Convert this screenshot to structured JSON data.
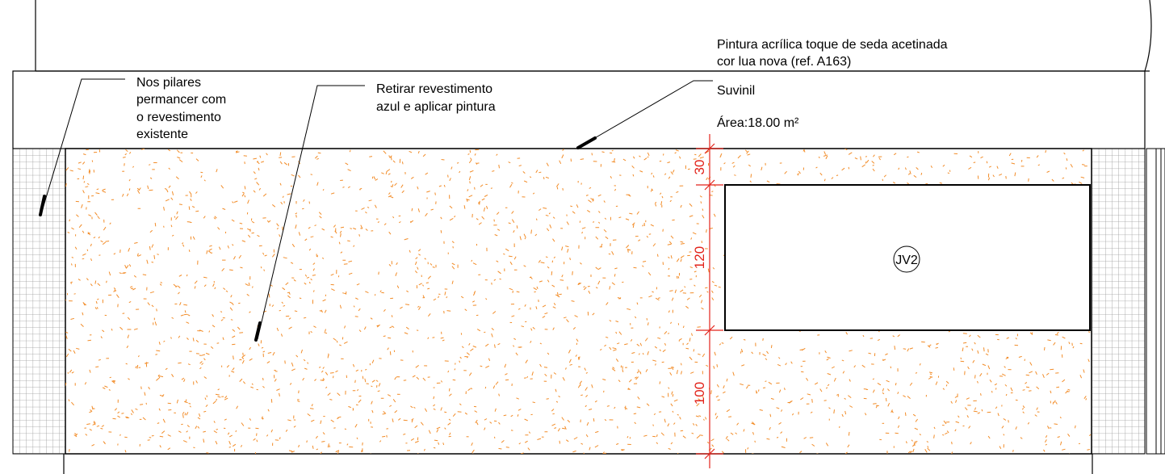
{
  "notes": {
    "pillars": [
      "Nos pilares",
      "permancer com",
      "o revestimento",
      "existente"
    ],
    "remove_cladding": [
      "Retirar revestimento",
      "azul e aplicar pintura"
    ],
    "paint_spec": [
      "Pintura acrílica toque de seda acetinada",
      "cor lua nova (ref. A163)"
    ],
    "brand": "Suvinil",
    "area": "Área:18.00 m²"
  },
  "dimensions": [
    "30",
    "120",
    "100"
  ],
  "window_tag": "JV2",
  "colors": {
    "line": "#000000",
    "hatch": "#f28c28",
    "dimension": "#e2231a",
    "tile_grid": "#9a9a9a"
  }
}
